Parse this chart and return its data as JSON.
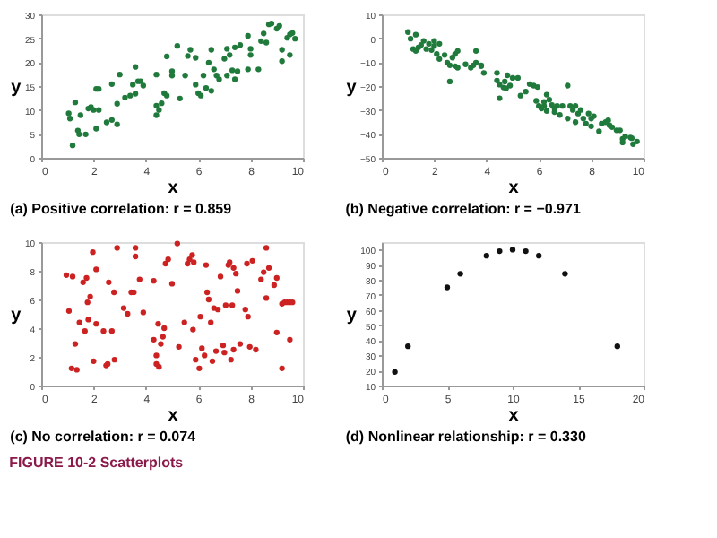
{
  "chart_data": [
    {
      "type": "scatter",
      "title": "(a) Positive correlation: r = 0.859",
      "xlabel": "x",
      "ylabel": "y",
      "color": "#1f7a3c",
      "marker": "circle",
      "xlim": [
        0,
        10
      ],
      "xticks": [
        0,
        2,
        4,
        6,
        8,
        10
      ],
      "ylim": [
        0,
        30
      ],
      "yticks": [
        0,
        5,
        10,
        15,
        20,
        25,
        30
      ],
      "x": [
        1.05,
        1.1,
        1.2,
        1.3,
        1.4,
        1.45,
        1.5,
        1.7,
        1.8,
        1.9,
        2.0,
        2.1,
        2.2,
        2.1,
        2.2,
        2.5,
        2.7,
        2.7,
        2.9,
        2.9,
        3.0,
        3.2,
        3.4,
        3.5,
        3.6,
        3.6,
        3.7,
        3.8,
        3.9,
        4.4,
        4.4,
        4.4,
        4.5,
        4.6,
        4.7,
        4.8,
        4.8,
        5.0,
        5.0,
        5.2,
        5.3,
        5.5,
        5.6,
        5.7,
        5.9,
        5.9,
        6.0,
        6.1,
        6.2,
        6.3,
        6.4,
        6.5,
        6.5,
        6.6,
        6.7,
        6.8,
        7.0,
        7.1,
        7.1,
        7.2,
        7.3,
        7.4,
        7.4,
        7.6,
        7.5,
        7.9,
        7.9,
        8.0,
        8.0,
        8.3,
        8.4,
        8.5,
        8.6,
        8.7,
        8.8,
        9.0,
        9.1,
        9.2,
        9.2,
        9.4,
        9.5,
        9.5,
        9.6,
        9.7
      ],
      "values": [
        9.3,
        8.2,
        2.6,
        11.6,
        5.7,
        4.9,
        8.9,
        4.9,
        10.3,
        10.6,
        10.0,
        14.4,
        14.4,
        6.1,
        10.0,
        7.4,
        7.9,
        15.4,
        11.3,
        7.0,
        17.4,
        12.6,
        13.0,
        15.3,
        13.4,
        19.0,
        16.0,
        16.0,
        15.1,
        17.4,
        10.9,
        8.9,
        10.0,
        11.4,
        13.5,
        13.0,
        21.2,
        17.2,
        18.1,
        23.4,
        12.4,
        17.2,
        21.3,
        22.6,
        20.9,
        15.3,
        13.5,
        13.0,
        17.2,
        14.6,
        19.9,
        22.6,
        14.0,
        18.5,
        17.2,
        16.4,
        20.7,
        17.2,
        22.8,
        21.5,
        18.3,
        16.4,
        23.1,
        23.6,
        18.1,
        18.5,
        25.5,
        21.5,
        22.8,
        18.5,
        24.4,
        26.0,
        24.1,
        27.9,
        28.1,
        27.0,
        27.6,
        22.6,
        20.2,
        25.1,
        25.8,
        21.5,
        26.1,
        24.9
      ]
    },
    {
      "type": "scatter",
      "title": "(b) Negative correlation: r = −0.971",
      "xlabel": "x",
      "ylabel": "y",
      "color": "#1f7a3c",
      "marker": "circle",
      "xlim": [
        0,
        10
      ],
      "xticks": [
        0,
        2,
        4,
        6,
        8,
        10
      ],
      "ylim": [
        -50,
        10
      ],
      "yticks": [
        -50,
        -40,
        -30,
        -20,
        -10,
        0,
        10
      ],
      "x": [
        1.0,
        1.1,
        1.3,
        1.2,
        1.3,
        1.4,
        1.5,
        1.6,
        1.7,
        1.8,
        1.9,
        2.0,
        2.0,
        2.1,
        2.2,
        2.2,
        2.4,
        2.5,
        2.6,
        2.7,
        2.6,
        2.8,
        2.8,
        2.9,
        2.9,
        3.2,
        3.4,
        3.5,
        3.6,
        3.6,
        3.8,
        3.8,
        3.9,
        4.4,
        4.4,
        4.5,
        4.5,
        4.65,
        4.75,
        4.7,
        4.8,
        4.9,
        5.0,
        5.2,
        5.3,
        5.5,
        5.65,
        5.8,
        5.95,
        5.9,
        6.0,
        6.1,
        6.2,
        6.2,
        6.3,
        6.3,
        6.4,
        6.5,
        6.6,
        6.6,
        6.7,
        6.8,
        6.9,
        7.1,
        7.1,
        7.2,
        7.3,
        7.4,
        7.4,
        7.5,
        7.6,
        7.7,
        7.8,
        7.9,
        8.0,
        8.0,
        8.1,
        8.3,
        8.4,
        8.55,
        8.65,
        8.7,
        8.8,
        8.97,
        9.1,
        9.2,
        9.2,
        9.3,
        9.5,
        9.55,
        9.6,
        9.75
      ],
      "values": [
        2.6,
        -0.2,
        1.5,
        -4.5,
        -5.3,
        -3.8,
        -2.8,
        -1.1,
        -4.5,
        -2.3,
        -4.9,
        -1.1,
        -3.2,
        -6.6,
        -2.3,
        -8.7,
        -7.0,
        -10.2,
        -11.3,
        -8.1,
        -18.1,
        -6.6,
        -11.7,
        -5.3,
        -12.3,
        -10.9,
        -12.3,
        -11.3,
        -5.3,
        -10.2,
        -11.7,
        -11.3,
        -14.5,
        -14.5,
        -17.7,
        -19.4,
        -25.1,
        -20.6,
        -20.9,
        -18.1,
        -15.5,
        -19.8,
        -16.6,
        -16.6,
        -24.0,
        -22.3,
        -19.2,
        -19.8,
        -20.4,
        -26.2,
        -28.3,
        -29.4,
        -26.6,
        -28.3,
        -23.6,
        -30.4,
        -25.7,
        -27.9,
        -30.9,
        -29.4,
        -28.3,
        -32.1,
        -28.3,
        -33.6,
        -19.8,
        -28.3,
        -30.0,
        -28.3,
        -35.1,
        -31.5,
        -30.0,
        -33.6,
        -35.7,
        -31.5,
        -33.6,
        -36.8,
        -32.6,
        -38.9,
        -35.7,
        -35.1,
        -34.3,
        -36.4,
        -37.2,
        -38.5,
        -38.5,
        -42.1,
        -43.6,
        -41.1,
        -41.5,
        -41.8,
        -44.3,
        -43.2
      ]
    },
    {
      "type": "scatter",
      "title": "(c) No correlation: r = 0.074",
      "xlabel": "x",
      "ylabel": "y",
      "color": "#cc2222",
      "marker": "circle",
      "xlim": [
        0,
        10
      ],
      "xticks": [
        0,
        2,
        4,
        6,
        8,
        10
      ],
      "ylim": [
        0,
        10
      ],
      "yticks": [
        0,
        2,
        4,
        6,
        8,
        10
      ],
      "x": [
        0.96,
        1.06,
        1.2,
        1.16,
        1.36,
        1.3,
        1.46,
        1.6,
        1.67,
        1.73,
        1.77,
        1.8,
        1.87,
        1.97,
        2.0,
        2.1,
        2.1,
        2.38,
        2.48,
        2.54,
        2.58,
        2.7,
        2.78,
        2.8,
        2.9,
        3.15,
        3.3,
        3.44,
        3.54,
        3.6,
        3.6,
        3.76,
        3.9,
        4.3,
        4.3,
        4.4,
        4.4,
        4.47,
        4.5,
        4.57,
        4.65,
        4.7,
        4.75,
        4.85,
        5.0,
        5.2,
        5.26,
        5.47,
        5.59,
        5.67,
        5.77,
        5.83,
        5.8,
        5.9,
        6.04,
        6.08,
        6.14,
        6.24,
        6.3,
        6.34,
        6.4,
        6.48,
        6.54,
        6.6,
        6.68,
        6.75,
        6.85,
        6.95,
        7.0,
        7.05,
        7.15,
        7.2,
        7.25,
        7.3,
        7.35,
        7.35,
        7.44,
        7.5,
        7.6,
        7.8,
        7.86,
        7.9,
        7.97,
        8.07,
        8.2,
        8.4,
        8.5,
        8.6,
        8.7,
        8.6,
        8.9,
        9.0,
        9.0,
        9.2,
        9.2,
        9.3,
        9.4,
        9.5,
        9.6,
        9.5
      ],
      "values": [
        7.7,
        5.2,
        7.6,
        1.2,
        1.1,
        2.9,
        4.4,
        7.2,
        3.8,
        7.5,
        5.8,
        4.6,
        6.2,
        9.3,
        1.7,
        8.1,
        4.3,
        3.8,
        1.4,
        1.5,
        7.2,
        3.8,
        6.5,
        1.8,
        9.6,
        5.4,
        5.0,
        6.5,
        6.5,
        9.6,
        9.0,
        7.4,
        5.1,
        7.3,
        3.2,
        2.1,
        1.5,
        4.3,
        1.3,
        2.9,
        3.4,
        4.0,
        8.5,
        8.8,
        7.1,
        9.9,
        2.7,
        4.4,
        8.5,
        8.8,
        9.1,
        8.6,
        3.9,
        1.8,
        1.2,
        4.8,
        2.6,
        2.1,
        8.4,
        6.5,
        6.0,
        4.4,
        1.7,
        5.4,
        2.4,
        5.3,
        7.6,
        2.8,
        2.3,
        5.6,
        8.4,
        8.6,
        1.8,
        5.6,
        8.2,
        2.5,
        7.8,
        6.6,
        2.9,
        5.3,
        8.5,
        4.8,
        2.7,
        8.7,
        2.5,
        7.4,
        7.9,
        9.6,
        8.2,
        6.1,
        7.0,
        7.5,
        3.7,
        1.2,
        5.7,
        5.8,
        5.8,
        5.8,
        5.8,
        3.2
      ]
    },
    {
      "type": "scatter",
      "title": "(d) Nonlinear relationship: r = 0.330",
      "xlabel": "x",
      "ylabel": "y",
      "color": "#111111",
      "marker": "circle",
      "xlim": [
        0,
        20
      ],
      "xticks": [
        0,
        5,
        10,
        15,
        20
      ],
      "ylim": [
        10,
        105
      ],
      "yticks": [
        10,
        20,
        30,
        40,
        50,
        60,
        70,
        80,
        90,
        100
      ],
      "x": [
        1,
        2,
        5,
        6,
        8,
        9,
        10,
        11,
        12,
        14,
        18
      ],
      "values": [
        19,
        36,
        75,
        84,
        96,
        99,
        100,
        99,
        96,
        84,
        36
      ],
      "annotations": [
        "FIGURE 10-2   Scatterplots"
      ]
    }
  ]
}
